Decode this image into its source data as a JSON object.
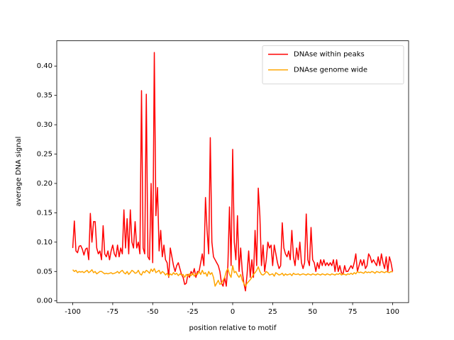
{
  "chart_data": {
    "type": "line",
    "xlabel": "position relative to motif",
    "ylabel": "average DNA signal",
    "x": [
      -100,
      -99,
      -98,
      -97,
      -96,
      -95,
      -94,
      -93,
      -92,
      -91,
      -90,
      -89,
      -88,
      -87,
      -86,
      -85,
      -84,
      -83,
      -82,
      -81,
      -80,
      -79,
      -78,
      -77,
      -76,
      -75,
      -74,
      -73,
      -72,
      -71,
      -70,
      -69,
      -68,
      -67,
      -66,
      -65,
      -64,
      -63,
      -62,
      -61,
      -60,
      -59,
      -58,
      -57,
      -56,
      -55,
      -54,
      -53,
      -52,
      -51,
      -50,
      -49,
      -48,
      -47,
      -46,
      -45,
      -44,
      -43,
      -42,
      -41,
      -40,
      -39,
      -38,
      -37,
      -36,
      -35,
      -34,
      -33,
      -32,
      -31,
      -30,
      -29,
      -28,
      -27,
      -26,
      -25,
      -24,
      -23,
      -22,
      -21,
      -20,
      -19,
      -18,
      -17,
      -16,
      -15,
      -14,
      -13,
      -12,
      -11,
      -10,
      -9,
      -8,
      -7,
      -6,
      -5,
      -4,
      -3,
      -2,
      -1,
      0,
      1,
      2,
      3,
      4,
      5,
      6,
      7,
      8,
      9,
      10,
      11,
      12,
      13,
      14,
      15,
      16,
      17,
      18,
      19,
      20,
      21,
      22,
      23,
      24,
      25,
      26,
      27,
      28,
      29,
      30,
      31,
      32,
      33,
      34,
      35,
      36,
      37,
      38,
      39,
      40,
      41,
      42,
      43,
      44,
      45,
      46,
      47,
      48,
      49,
      50,
      51,
      52,
      53,
      54,
      55,
      56,
      57,
      58,
      59,
      60,
      61,
      62,
      63,
      64,
      65,
      66,
      67,
      68,
      69,
      70,
      71,
      72,
      73,
      74,
      75,
      76,
      77,
      78,
      79,
      80,
      81,
      82,
      83,
      84,
      85,
      86,
      87,
      88,
      89,
      90,
      91,
      92,
      93,
      94,
      95,
      96,
      97,
      98,
      99,
      100
    ],
    "series": [
      {
        "name": "DNAse within peaks",
        "color": "#ff0000",
        "values": [
          0.09,
          0.136,
          0.085,
          0.082,
          0.093,
          0.094,
          0.088,
          0.078,
          0.088,
          0.09,
          0.07,
          0.149,
          0.1,
          0.135,
          0.135,
          0.09,
          0.08,
          0.085,
          0.07,
          0.128,
          0.08,
          0.075,
          0.085,
          0.07,
          0.085,
          0.095,
          0.08,
          0.075,
          0.095,
          0.075,
          0.09,
          0.08,
          0.155,
          0.09,
          0.14,
          0.08,
          0.155,
          0.1,
          0.09,
          0.135,
          0.09,
          0.1,
          0.08,
          0.358,
          0.09,
          0.08,
          0.352,
          0.075,
          0.07,
          0.2,
          0.065,
          0.423,
          0.145,
          0.193,
          0.085,
          0.12,
          0.075,
          0.095,
          0.07,
          0.065,
          0.04,
          0.09,
          0.075,
          0.06,
          0.05,
          0.06,
          0.065,
          0.055,
          0.045,
          0.04,
          0.028,
          0.03,
          0.045,
          0.04,
          0.05,
          0.045,
          0.055,
          0.04,
          0.05,
          0.05,
          0.065,
          0.08,
          0.06,
          0.176,
          0.12,
          0.08,
          0.278,
          0.1,
          0.075,
          0.07,
          0.065,
          0.06,
          0.05,
          0.03,
          0.025,
          0.04,
          0.025,
          0.06,
          0.16,
          0.06,
          0.258,
          0.1,
          0.07,
          0.145,
          0.05,
          0.09,
          0.05,
          0.03,
          0.017,
          0.045,
          0.085,
          0.04,
          0.07,
          0.04,
          0.12,
          0.06,
          0.192,
          0.145,
          0.06,
          0.095,
          0.05,
          0.07,
          0.1,
          0.09,
          0.095,
          0.06,
          0.095,
          0.08,
          0.065,
          0.055,
          0.06,
          0.133,
          0.09,
          0.08,
          0.075,
          0.085,
          0.07,
          0.12,
          0.075,
          0.06,
          0.09,
          0.07,
          0.1,
          0.065,
          0.055,
          0.065,
          0.148,
          0.07,
          0.06,
          0.125,
          0.07,
          0.065,
          0.05,
          0.065,
          0.055,
          0.07,
          0.06,
          0.07,
          0.06,
          0.065,
          0.06,
          0.065,
          0.06,
          0.07,
          0.05,
          0.07,
          0.05,
          0.06,
          0.048,
          0.045,
          0.06,
          0.05,
          0.05,
          0.055,
          0.06,
          0.055,
          0.065,
          0.08,
          0.05,
          0.06,
          0.07,
          0.06,
          0.07,
          0.055,
          0.06,
          0.08,
          0.075,
          0.065,
          0.07,
          0.065,
          0.06,
          0.075,
          0.06,
          0.08,
          0.065,
          0.055,
          0.075,
          0.05,
          0.075,
          0.065,
          0.05
        ]
      },
      {
        "name": "DNAse genome wide",
        "color": "#ffa500",
        "values": [
          0.053,
          0.05,
          0.052,
          0.048,
          0.05,
          0.049,
          0.05,
          0.048,
          0.05,
          0.052,
          0.048,
          0.05,
          0.053,
          0.048,
          0.05,
          0.046,
          0.048,
          0.05,
          0.05,
          0.048,
          0.046,
          0.047,
          0.046,
          0.047,
          0.048,
          0.046,
          0.047,
          0.048,
          0.05,
          0.047,
          0.05,
          0.052,
          0.048,
          0.046,
          0.05,
          0.045,
          0.048,
          0.052,
          0.05,
          0.047,
          0.048,
          0.052,
          0.046,
          0.044,
          0.05,
          0.048,
          0.052,
          0.05,
          0.047,
          0.054,
          0.05,
          0.055,
          0.048,
          0.05,
          0.052,
          0.046,
          0.05,
          0.048,
          0.044,
          0.047,
          0.042,
          0.046,
          0.044,
          0.048,
          0.045,
          0.047,
          0.043,
          0.046,
          0.044,
          0.045,
          0.04,
          0.045,
          0.042,
          0.046,
          0.043,
          0.047,
          0.042,
          0.046,
          0.045,
          0.05,
          0.045,
          0.052,
          0.046,
          0.048,
          0.042,
          0.05,
          0.045,
          0.048,
          0.04,
          0.025,
          0.03,
          0.035,
          0.028,
          0.03,
          0.035,
          0.04,
          0.05,
          0.055,
          0.045,
          0.04,
          0.06,
          0.048,
          0.05,
          0.044,
          0.04,
          0.045,
          0.035,
          0.03,
          0.025,
          0.03,
          0.033,
          0.036,
          0.04,
          0.045,
          0.048,
          0.052,
          0.058,
          0.05,
          0.045,
          0.044,
          0.046,
          0.05,
          0.048,
          0.044,
          0.045,
          0.046,
          0.042,
          0.048,
          0.046,
          0.044,
          0.045,
          0.047,
          0.043,
          0.046,
          0.044,
          0.045,
          0.046,
          0.043,
          0.047,
          0.045,
          0.045,
          0.046,
          0.044,
          0.045,
          0.046,
          0.045,
          0.044,
          0.046,
          0.045,
          0.044,
          0.046,
          0.045,
          0.044,
          0.046,
          0.045,
          0.044,
          0.046,
          0.045,
          0.044,
          0.046,
          0.045,
          0.044,
          0.046,
          0.045,
          0.044,
          0.046,
          0.045,
          0.047,
          0.044,
          0.046,
          0.045,
          0.044,
          0.046,
          0.045,
          0.047,
          0.045,
          0.048,
          0.046,
          0.05,
          0.048,
          0.049,
          0.048,
          0.047,
          0.05,
          0.048,
          0.049,
          0.048,
          0.05,
          0.049,
          0.047,
          0.05,
          0.049,
          0.048,
          0.05,
          0.049,
          0.048,
          0.05,
          0.049,
          0.048,
          0.05,
          0.049
        ]
      }
    ],
    "xlim": [
      -110,
      110
    ],
    "xticks": [
      -100,
      -75,
      -50,
      -25,
      0,
      25,
      50,
      75,
      100
    ],
    "ylim": [
      -0.003,
      0.443
    ],
    "yticks": [
      {
        "value": 0,
        "label": "0.00"
      },
      {
        "value": 0.05,
        "label": "0.05"
      },
      {
        "value": 0.1,
        "label": "0.10"
      },
      {
        "value": 0.15,
        "label": "0.15"
      },
      {
        "value": 0.2,
        "label": "0.20"
      },
      {
        "value": 0.25,
        "label": "0.25"
      },
      {
        "value": 0.3,
        "label": "0.30"
      },
      {
        "value": 0.35,
        "label": "0.35"
      },
      {
        "value": 0.4,
        "label": "0.40"
      }
    ],
    "legend": "upper right",
    "grid": false
  }
}
